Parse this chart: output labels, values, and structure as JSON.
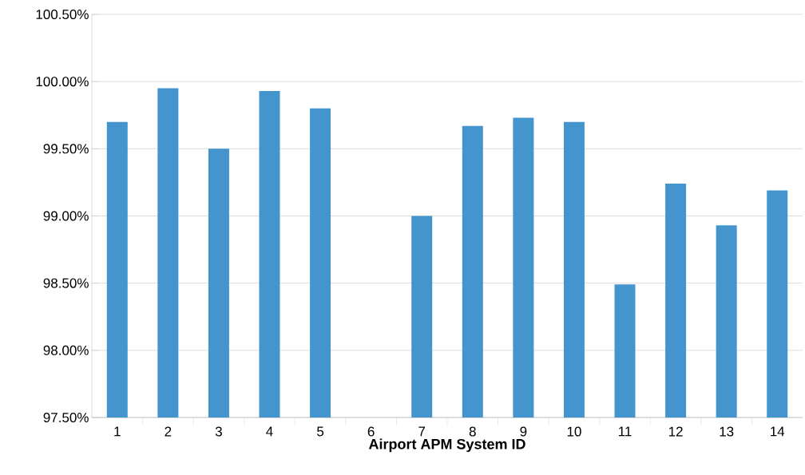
{
  "chart_data": {
    "type": "bar",
    "xlabel": "Airport APM System ID",
    "categories": [
      "1",
      "2",
      "3",
      "4",
      "5",
      "6",
      "7",
      "8",
      "9",
      "10",
      "11",
      "12",
      "13",
      "14"
    ],
    "values": [
      99.7,
      99.95,
      99.5,
      99.93,
      99.8,
      null,
      99.0,
      99.67,
      99.73,
      99.7,
      98.49,
      99.24,
      98.93,
      99.19
    ],
    "color": "#4495ce",
    "ylim": [
      97.5,
      100.5
    ],
    "yticks": [
      {
        "value": 97.5,
        "label": "97.50%"
      },
      {
        "value": 98.0,
        "label": "98.00%"
      },
      {
        "value": 98.5,
        "label": "98.50%"
      },
      {
        "value": 99.0,
        "label": "99.00%"
      },
      {
        "value": 99.5,
        "label": "99.50%"
      },
      {
        "value": 100.0,
        "label": "100.00%"
      },
      {
        "value": 100.5,
        "label": "100.50%"
      }
    ],
    "grid": "y"
  }
}
